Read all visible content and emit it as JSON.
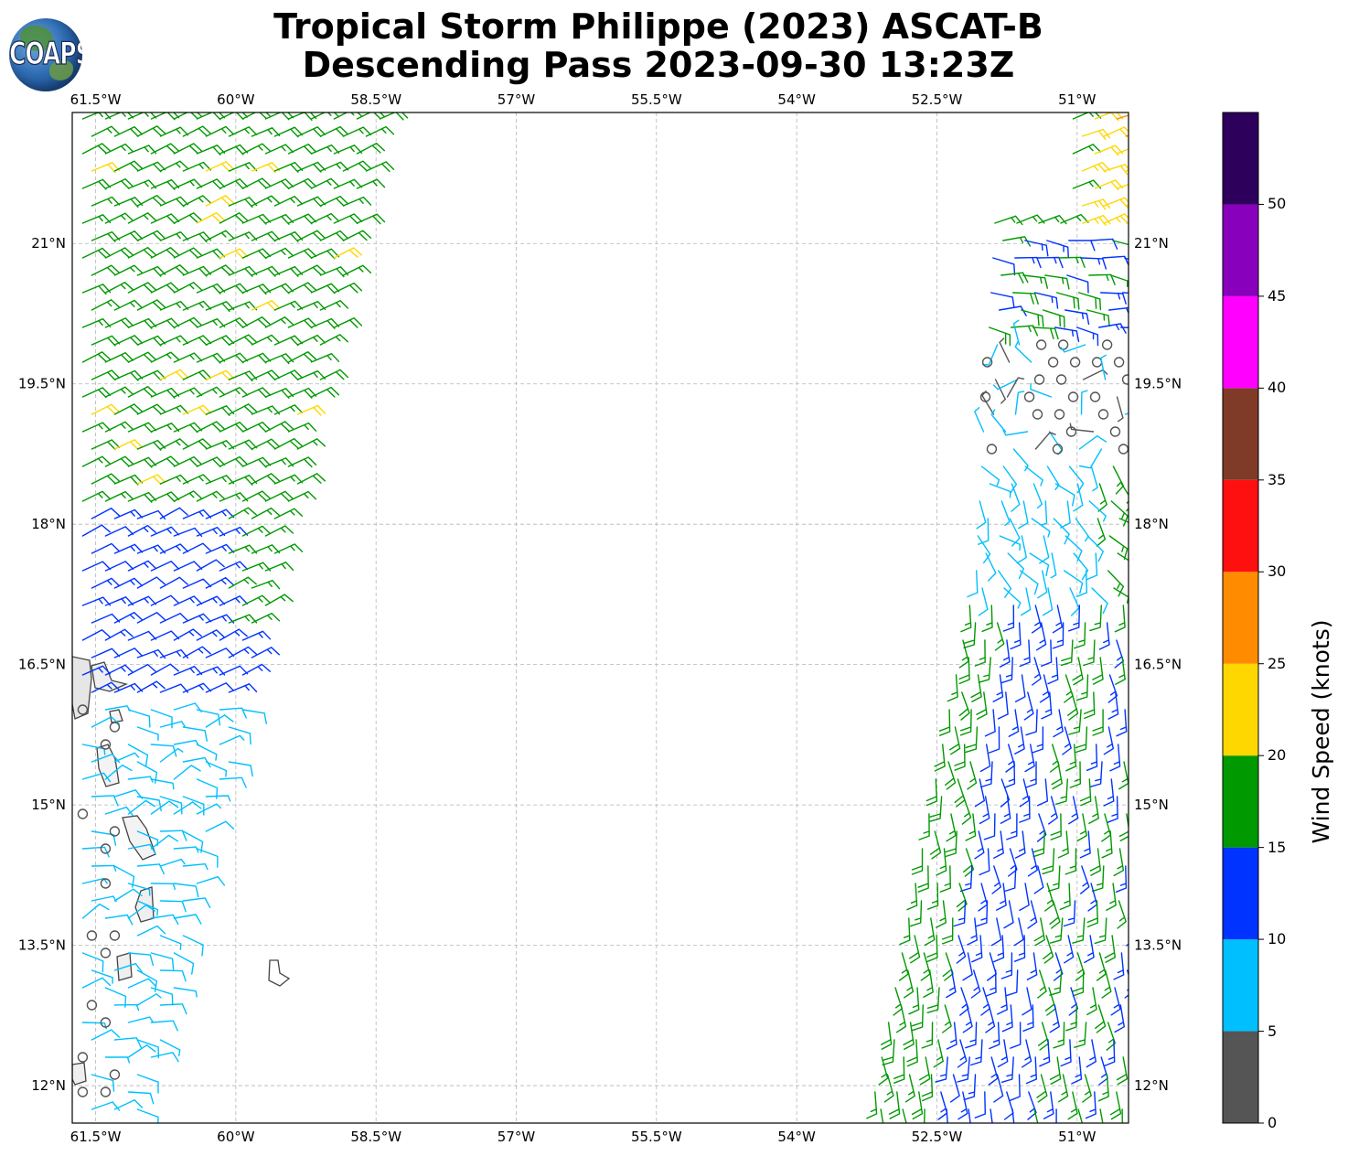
{
  "title": {
    "line1": "Tropical Storm Philippe (2023) ASCAT-B",
    "line2": "Descending Pass 2023-09-30 13:23Z"
  },
  "logo": {
    "text": "COAPS"
  },
  "map": {
    "lon_labels": [
      "61.5°W",
      "60°W",
      "58.5°W",
      "57°W",
      "55.5°W",
      "54°W",
      "52.5°W",
      "51°W"
    ],
    "lon_values": [
      -61.5,
      -60,
      -58.5,
      -57,
      -55.5,
      -54,
      -52.5,
      -51
    ],
    "lat_labels": [
      "21°N",
      "19.5°N",
      "18°N",
      "16.5°N",
      "15°N",
      "13.5°N",
      "12°N"
    ],
    "lat_values": [
      21,
      19.5,
      18,
      16.5,
      15,
      13.5,
      12
    ],
    "lon_range": [
      -61.75,
      -50.45
    ],
    "lat_range": [
      11.6,
      22.4
    ],
    "gridlines": true
  },
  "colorbar": {
    "label": "Wind Speed (knots)",
    "tick_labels": [
      "0",
      "5",
      "10",
      "15",
      "20",
      "25",
      "30",
      "35",
      "40",
      "45",
      "50"
    ],
    "bins": [
      {
        "min": 0,
        "max": 5,
        "color": "#555555"
      },
      {
        "min": 5,
        "max": 10,
        "color": "#00bfff"
      },
      {
        "min": 10,
        "max": 15,
        "color": "#0033ff"
      },
      {
        "min": 15,
        "max": 20,
        "color": "#009900"
      },
      {
        "min": 20,
        "max": 25,
        "color": "#ffd700"
      },
      {
        "min": 25,
        "max": 30,
        "color": "#ff8c00"
      },
      {
        "min": 30,
        "max": 35,
        "color": "#ff1010"
      },
      {
        "min": 35,
        "max": 40,
        "color": "#7f3a28"
      },
      {
        "min": 40,
        "max": 45,
        "color": "#ff00ff"
      },
      {
        "min": 45,
        "max": 50,
        "color": "#8800bb"
      },
      {
        "min": 50,
        "max": 55,
        "color": "#2d005c"
      }
    ]
  }
}
